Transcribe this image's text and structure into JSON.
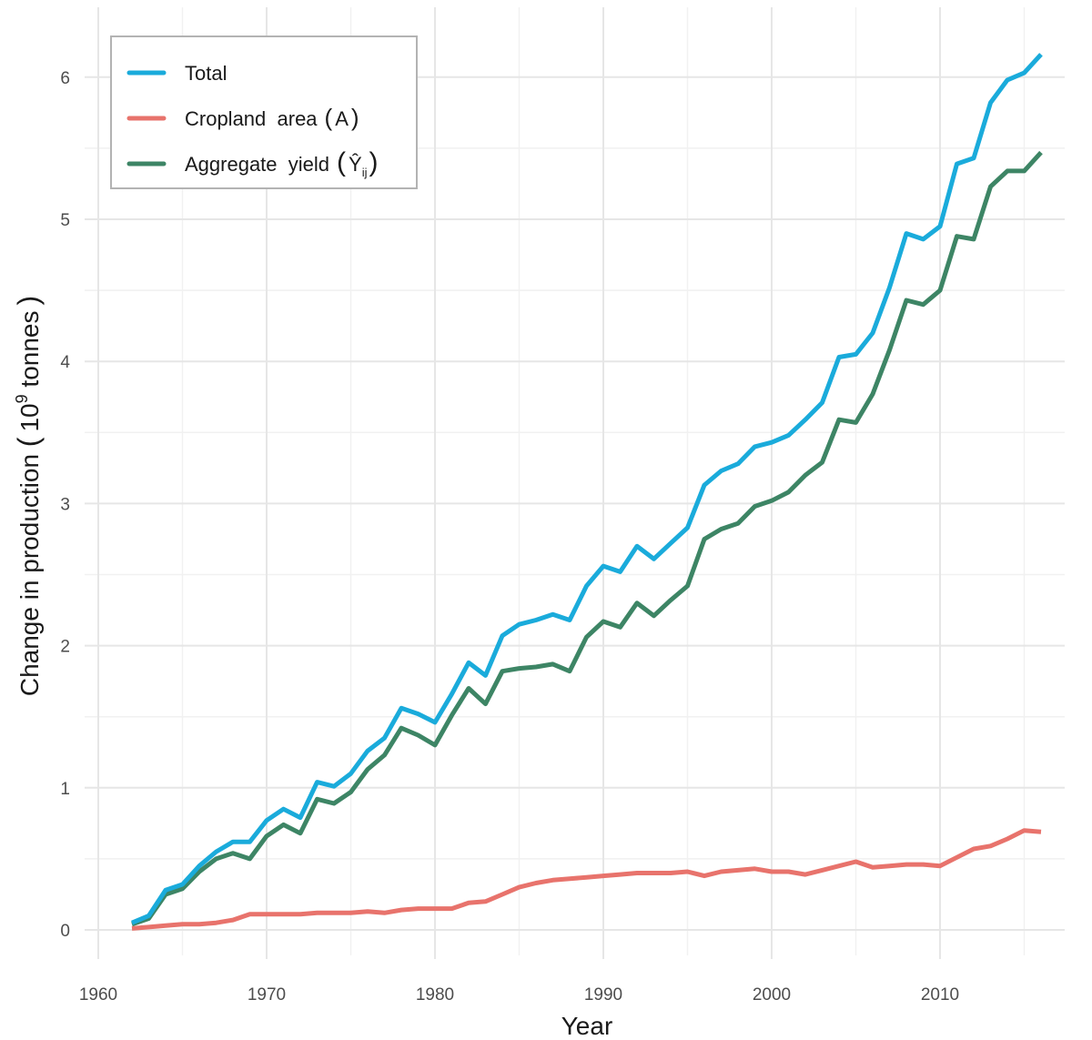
{
  "chart_data": {
    "type": "line",
    "title": "",
    "xlabel": "Year",
    "ylabel": "Change in production (10^9 tonnes)",
    "ylabel_parts": {
      "main": "Change in production ",
      "open": "(",
      "base": "10",
      "sup": "9",
      "unit": " tonnes",
      "close": ")"
    },
    "xlim": [
      1958.8,
      2018.3
    ],
    "ylim": [
      -0.25,
      6.45
    ],
    "x_ticks": [
      1960,
      1970,
      1980,
      1990,
      2000,
      2010
    ],
    "x_tick_labels": [
      "1960",
      "1970",
      "1980",
      "1990",
      "2000",
      "2010"
    ],
    "y_ticks": [
      0,
      1,
      2,
      3,
      4,
      5,
      6
    ],
    "y_tick_labels": [
      "0",
      "1",
      "2",
      "3",
      "4",
      "5",
      "6"
    ],
    "grid": true,
    "legend_position": "top-left",
    "x": [
      1962,
      1963,
      1964,
      1965,
      1966,
      1967,
      1968,
      1969,
      1970,
      1971,
      1972,
      1973,
      1974,
      1975,
      1976,
      1977,
      1978,
      1979,
      1980,
      1981,
      1982,
      1983,
      1984,
      1985,
      1986,
      1987,
      1988,
      1989,
      1990,
      1991,
      1992,
      1993,
      1994,
      1995,
      1996,
      1997,
      1998,
      1999,
      2000,
      2001,
      2002,
      2003,
      2004,
      2005,
      2006,
      2007,
      2008,
      2009,
      2010,
      2011,
      2012,
      2013,
      2014,
      2015,
      2016
    ],
    "series": [
      {
        "name": "Total",
        "legend_label": "Total",
        "color": "#1aabdb",
        "values": [
          0.05,
          0.1,
          0.28,
          0.32,
          0.45,
          0.55,
          0.62,
          0.62,
          0.77,
          0.85,
          0.79,
          1.04,
          1.01,
          1.1,
          1.26,
          1.35,
          1.56,
          1.52,
          1.46,
          1.66,
          1.88,
          1.79,
          2.07,
          2.15,
          2.18,
          2.22,
          2.18,
          2.42,
          2.56,
          2.52,
          2.7,
          2.61,
          2.72,
          2.83,
          3.13,
          3.23,
          3.28,
          3.4,
          3.43,
          3.48,
          3.59,
          3.71,
          4.03,
          4.05,
          4.2,
          4.52,
          4.9,
          4.86,
          4.95,
          5.39,
          5.43,
          5.82,
          5.98,
          6.03,
          6.16
        ]
      },
      {
        "name": "Cropland area (A)",
        "legend_label": "Cropland  area",
        "legend_symbol": "A",
        "color": "#e8736c",
        "values": [
          0.01,
          0.02,
          0.03,
          0.04,
          0.04,
          0.05,
          0.07,
          0.11,
          0.11,
          0.11,
          0.11,
          0.12,
          0.12,
          0.12,
          0.13,
          0.12,
          0.14,
          0.15,
          0.15,
          0.15,
          0.19,
          0.2,
          0.25,
          0.3,
          0.33,
          0.35,
          0.36,
          0.37,
          0.38,
          0.39,
          0.4,
          0.4,
          0.4,
          0.41,
          0.38,
          0.41,
          0.42,
          0.43,
          0.41,
          0.41,
          0.39,
          0.42,
          0.45,
          0.48,
          0.44,
          0.45,
          0.46,
          0.46,
          0.45,
          0.51,
          0.57,
          0.59,
          0.64,
          0.7,
          0.69
        ]
      },
      {
        "name": "Aggregate yield (Ŷij)",
        "legend_label": "Aggregate  yield",
        "legend_symbol": "Ŷ",
        "legend_symbol_sub": "ij",
        "color": "#3d8565",
        "values": [
          0.04,
          0.08,
          0.25,
          0.29,
          0.41,
          0.5,
          0.54,
          0.5,
          0.66,
          0.74,
          0.68,
          0.92,
          0.89,
          0.97,
          1.13,
          1.23,
          1.42,
          1.37,
          1.3,
          1.51,
          1.7,
          1.59,
          1.82,
          1.84,
          1.85,
          1.87,
          1.82,
          2.06,
          2.17,
          2.13,
          2.3,
          2.21,
          2.32,
          2.42,
          2.75,
          2.82,
          2.86,
          2.98,
          3.02,
          3.08,
          3.2,
          3.29,
          3.59,
          3.57,
          3.77,
          4.08,
          4.43,
          4.4,
          4.5,
          4.88,
          4.86,
          5.23,
          5.34,
          5.34,
          5.47
        ]
      }
    ]
  }
}
